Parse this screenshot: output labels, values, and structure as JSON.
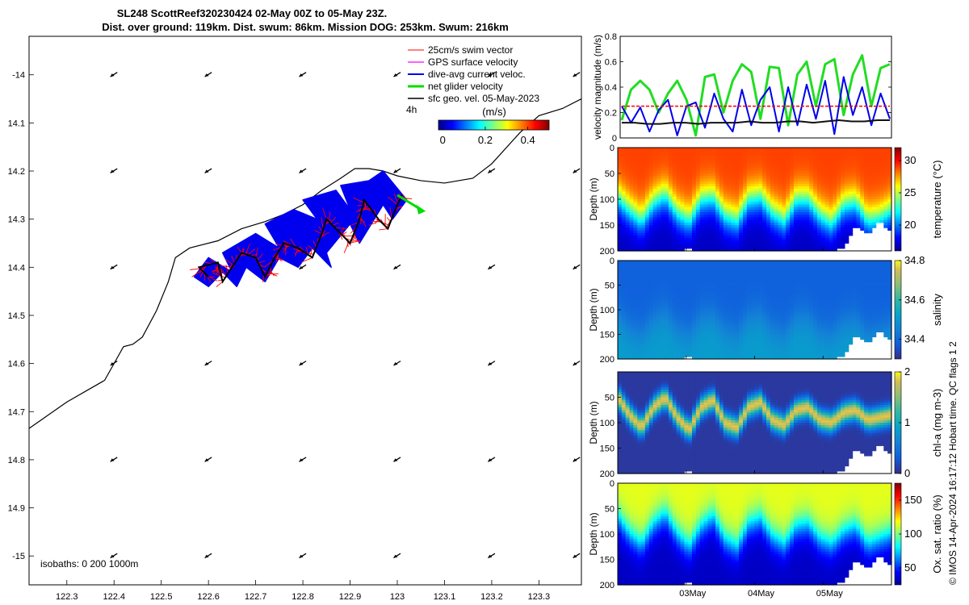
{
  "title": {
    "line1": "SL248 ScottReef320230424 02-May 00Z to 05-May 23Z.",
    "line2": "Dist. over ground: 119km. Dist. swum: 86km. Mission DOG: 253km. Swum: 216km"
  },
  "side_note": "© IMOS 14-Apr-2024 16:17:12 Hobart time. QC flags 1  2",
  "colors": {
    "swim": "#ff0000",
    "gps": "#ff00ff",
    "current": "#0000ee",
    "net": "#00dd00",
    "geo": "#000000"
  },
  "chart_data": [
    {
      "type": "map",
      "x_ticks": [
        "122.3",
        "122.4",
        "122.5",
        "122.6",
        "122.7",
        "122.8",
        "122.9",
        "123",
        "123.1",
        "123.2",
        "123.3"
      ],
      "x_values": [
        122.3,
        122.4,
        122.5,
        122.6,
        122.7,
        122.8,
        122.9,
        123.0,
        123.1,
        123.2,
        123.3
      ],
      "y_ticks": [
        "-14",
        "14.1",
        "14.2",
        "14.3",
        "14.4",
        "14.5",
        "14.6",
        "14.7",
        "14.8",
        "14.9",
        "-15"
      ],
      "y_values": [
        -14.0,
        -14.1,
        -14.2,
        -14.3,
        -14.4,
        -14.5,
        -14.6,
        -14.7,
        -14.8,
        -14.9,
        -15.0
      ],
      "xlim": [
        122.22,
        123.39
      ],
      "ylim": [
        -15.06,
        -13.92
      ],
      "legend": {
        "items": [
          "25cm/s swim vector",
          "GPS surface velocity",
          "dive-avg current veloc.",
          "net glider velocity",
          "sfc geo. vel. 05-May-2023"
        ],
        "interval": "4h",
        "placement": "top-right"
      },
      "colorbar": {
        "label": "(m/s)",
        "ticks": [
          "0",
          "0.2",
          "0.4"
        ],
        "tick_values": [
          0,
          0.2,
          0.4
        ],
        "range": [
          -0.02,
          0.5
        ]
      },
      "isobaths_label": "isobaths: 0   200  1000m",
      "isobath": [
        [
          122.22,
          -14.735
        ],
        [
          122.3,
          -14.68
        ],
        [
          122.38,
          -14.635
        ],
        [
          122.4,
          -14.6
        ],
        [
          122.42,
          -14.565
        ],
        [
          122.44,
          -14.56
        ],
        [
          122.46,
          -14.545
        ],
        [
          122.49,
          -14.49
        ],
        [
          122.515,
          -14.43
        ],
        [
          122.53,
          -14.38
        ],
        [
          122.56,
          -14.36
        ],
        [
          122.62,
          -14.345
        ],
        [
          122.67,
          -14.32
        ],
        [
          122.72,
          -14.305
        ],
        [
          122.76,
          -14.29
        ],
        [
          122.8,
          -14.27
        ],
        [
          122.84,
          -14.24
        ],
        [
          122.88,
          -14.215
        ],
        [
          122.91,
          -14.195
        ],
        [
          122.94,
          -14.195
        ],
        [
          122.97,
          -14.2
        ],
        [
          123.0,
          -14.21
        ],
        [
          123.05,
          -14.22
        ],
        [
          123.1,
          -14.225
        ],
        [
          123.16,
          -14.215
        ],
        [
          123.2,
          -14.185
        ],
        [
          123.26,
          -14.12
        ],
        [
          123.3,
          -14.085
        ],
        [
          123.35,
          -14.07
        ],
        [
          123.39,
          -14.05
        ]
      ],
      "track": [
        [
          122.6,
          -14.42
        ],
        [
          122.58,
          -14.4
        ],
        [
          122.62,
          -14.39
        ],
        [
          122.63,
          -14.43
        ],
        [
          122.65,
          -14.4
        ],
        [
          122.67,
          -14.37
        ],
        [
          122.7,
          -14.38
        ],
        [
          122.72,
          -14.42
        ],
        [
          122.74,
          -14.38
        ],
        [
          122.76,
          -14.35
        ],
        [
          122.79,
          -14.36
        ],
        [
          122.82,
          -14.38
        ],
        [
          122.84,
          -14.33
        ],
        [
          122.85,
          -14.3
        ],
        [
          122.88,
          -14.33
        ],
        [
          122.9,
          -14.35
        ],
        [
          122.92,
          -14.3
        ],
        [
          122.93,
          -14.26
        ],
        [
          122.96,
          -14.3
        ],
        [
          122.98,
          -14.32
        ],
        [
          123.0,
          -14.27
        ],
        [
          123.01,
          -14.25
        ]
      ],
      "current_polygon": [
        [
          122.6,
          -14.44
        ],
        [
          122.57,
          -14.42
        ],
        [
          122.6,
          -14.38
        ],
        [
          122.65,
          -14.41
        ],
        [
          122.63,
          -14.37
        ],
        [
          122.7,
          -14.33
        ],
        [
          122.75,
          -14.36
        ],
        [
          122.72,
          -14.31
        ],
        [
          122.78,
          -14.28
        ],
        [
          122.83,
          -14.3
        ],
        [
          122.8,
          -14.26
        ],
        [
          122.87,
          -14.24
        ],
        [
          122.9,
          -14.28
        ],
        [
          122.88,
          -14.23
        ],
        [
          122.94,
          -14.22
        ],
        [
          122.97,
          -14.2
        ],
        [
          123.02,
          -14.26
        ],
        [
          122.99,
          -14.3
        ],
        [
          122.97,
          -14.27
        ],
        [
          122.92,
          -14.35
        ],
        [
          122.9,
          -14.31
        ],
        [
          122.85,
          -14.37
        ],
        [
          122.86,
          -14.4
        ],
        [
          122.82,
          -14.36
        ],
        [
          122.79,
          -14.4
        ],
        [
          122.75,
          -14.38
        ],
        [
          122.72,
          -14.43
        ],
        [
          122.68,
          -14.4
        ],
        [
          122.66,
          -14.44
        ],
        [
          122.63,
          -14.41
        ]
      ],
      "net_arrow": [
        [
          123.0,
          -14.25
        ],
        [
          123.05,
          -14.28
        ]
      ],
      "geo_vectors": {
        "lon": [
          122.4,
          122.6,
          122.8,
          123.0,
          123.2,
          123.38
        ],
        "lat": [
          -14.0,
          -14.2,
          -14.4,
          -14.6,
          -14.8,
          -15.0
        ],
        "u": -0.012,
        "v": -0.008
      }
    },
    {
      "type": "line",
      "ylabel": "velocity magnitude (m/s)",
      "ylim": [
        0,
        0.8
      ],
      "y_ticks": [
        "0",
        "0.2",
        "0.4",
        "0.6",
        "0.8"
      ],
      "y_values": [
        0,
        0.2,
        0.4,
        0.6,
        0.8
      ],
      "series": [
        {
          "color": "green",
          "values": [
            0.14,
            0.38,
            0.45,
            0.38,
            0.2,
            0.35,
            0.45,
            0.3,
            0.02,
            0.48,
            0.5,
            0.2,
            0.45,
            0.58,
            0.52,
            0.15,
            0.56,
            0.55,
            0.1,
            0.5,
            0.6,
            0.25,
            0.58,
            0.62,
            0.18,
            0.5,
            0.65,
            0.25,
            0.55,
            0.58
          ]
        },
        {
          "color": "blue",
          "values": [
            0.25,
            0.12,
            0.24,
            0.05,
            0.22,
            0.3,
            0.02,
            0.25,
            0.28,
            0.08,
            0.35,
            0.15,
            0.05,
            0.38,
            0.1,
            0.3,
            0.4,
            0.05,
            0.4,
            0.1,
            0.42,
            0.15,
            0.45,
            0.03,
            0.48,
            0.18,
            0.4,
            0.1,
            0.35,
            0.15
          ]
        },
        {
          "color": "red",
          "values": [
            0.25,
            0.25
          ]
        },
        {
          "color": "black",
          "values": [
            0.12,
            0.12,
            0.11,
            0.11,
            0.12,
            0.12,
            0.11,
            0.12,
            0.12,
            0.12,
            0.13,
            0.12,
            0.12,
            0.13,
            0.13,
            0.12,
            0.13,
            0.14,
            0.13,
            0.13,
            0.14,
            0.14
          ]
        }
      ]
    },
    {
      "type": "heatmap",
      "ylabel": "Depth (m)",
      "ylim": [
        200,
        0
      ],
      "y_ticks": [
        "0",
        "50",
        "100",
        "150",
        "200"
      ],
      "y_values": [
        0,
        50,
        100,
        150,
        200
      ],
      "colorbar": {
        "label": "temperature (°C)",
        "ticks": [
          "20",
          "25",
          "30"
        ],
        "tick_values": [
          20,
          25,
          30
        ],
        "range": [
          16,
          32
        ]
      },
      "surface_value": 29,
      "deep_value": 17,
      "scale": 55,
      "thermocline_depth": [
        95,
        120,
        140,
        105,
        90,
        125,
        140,
        100,
        95,
        130,
        140,
        100,
        95,
        125,
        140,
        100,
        100,
        130,
        145,
        110,
        105,
        140,
        135,
        120
      ],
      "seafloor_depth": [
        200,
        200,
        198,
        200,
        200,
        200,
        196,
        200,
        200,
        200,
        198,
        200,
        200,
        200,
        198,
        200,
        200,
        198,
        200,
        195,
        150,
        170,
        140,
        165
      ]
    },
    {
      "type": "heatmap",
      "ylabel": "Depth (m)",
      "ylim": [
        200,
        0
      ],
      "y_ticks": [
        "0",
        "50",
        "100",
        "150",
        "200"
      ],
      "y_values": [
        0,
        50,
        100,
        150,
        200
      ],
      "colorbar": {
        "label": "salinity",
        "ticks": [
          "34.4",
          "34.6",
          "34.8"
        ],
        "tick_values": [
          34.4,
          34.6,
          34.8
        ],
        "range": [
          34.3,
          34.8
        ]
      },
      "surface_value": 34.38,
      "deep_value": 34.5,
      "scale": 90,
      "thermocline_depth": [
        110,
        140,
        150,
        120,
        105,
        140,
        150,
        115,
        110,
        140,
        150,
        115,
        110,
        140,
        150,
        115,
        115,
        145,
        150,
        125,
        120,
        150,
        145,
        135
      ],
      "seafloor_depth": [
        200,
        200,
        198,
        200,
        200,
        200,
        196,
        200,
        200,
        200,
        198,
        200,
        200,
        200,
        198,
        200,
        200,
        198,
        200,
        195,
        150,
        170,
        140,
        165
      ]
    },
    {
      "type": "heatmap",
      "ylabel": "Depth (m)",
      "ylim": [
        200,
        0
      ],
      "y_ticks": [
        "50",
        "100",
        "150",
        "200"
      ],
      "y_values": [
        50,
        100,
        150,
        200
      ],
      "colorbar": {
        "label": "chl-a (mg m-3)",
        "ticks": [
          "0",
          "1",
          "2"
        ],
        "tick_values": [
          0,
          1,
          2
        ],
        "range": [
          0,
          2
        ]
      },
      "peak_value": 1.7,
      "scale": 18,
      "chl_max_depth": [
        50,
        85,
        110,
        70,
        50,
        90,
        115,
        70,
        55,
        100,
        110,
        70,
        60,
        95,
        105,
        75,
        70,
        95,
        100,
        80,
        75,
        95,
        90,
        85
      ],
      "seafloor_depth": [
        200,
        200,
        198,
        200,
        200,
        200,
        196,
        200,
        200,
        200,
        198,
        200,
        200,
        200,
        198,
        200,
        200,
        198,
        200,
        195,
        150,
        170,
        140,
        165
      ]
    },
    {
      "type": "heatmap",
      "ylabel": "Depth (m)",
      "ylim": [
        200,
        0
      ],
      "y_ticks": [
        "0",
        "50",
        "100",
        "150",
        "200"
      ],
      "y_values": [
        0,
        50,
        100,
        150,
        200
      ],
      "colorbar": {
        "label": "Ox. sat. ratio (%)",
        "ticks": [
          "50",
          "100",
          "150"
        ],
        "tick_values": [
          50,
          100,
          150
        ],
        "range": [
          25,
          175
        ]
      },
      "surface_value": 115,
      "deep_value": 35,
      "scale": 45,
      "oxycline_depth": [
        65,
        100,
        120,
        80,
        60,
        100,
        125,
        85,
        65,
        110,
        125,
        80,
        70,
        105,
        120,
        85,
        80,
        110,
        120,
        95,
        85,
        120,
        110,
        100
      ],
      "seafloor_depth": [
        200,
        200,
        198,
        200,
        200,
        200,
        196,
        200,
        200,
        200,
        198,
        200,
        200,
        200,
        198,
        200,
        200,
        198,
        200,
        195,
        150,
        170,
        140,
        165
      ],
      "x_ticks": [
        "03May",
        "04May",
        "05May"
      ],
      "x_values": [
        1,
        2,
        3
      ],
      "xlim": [
        0,
        4
      ]
    }
  ]
}
